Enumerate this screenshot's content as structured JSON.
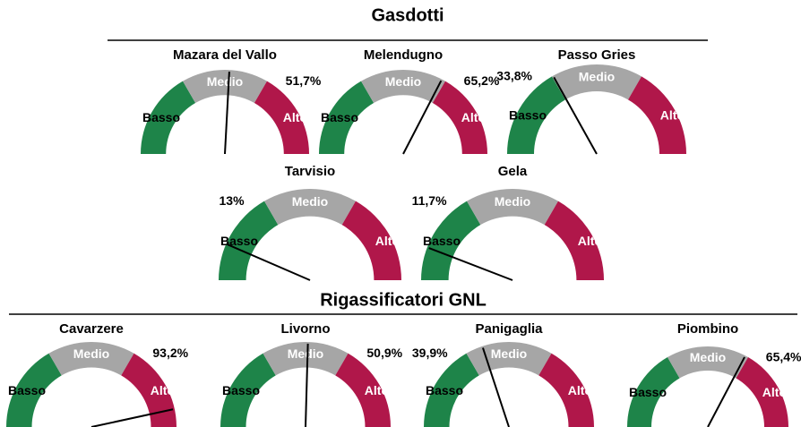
{
  "sections": [
    {
      "title": "Gasdotti"
    },
    {
      "title": "Rigassificatori GNL"
    }
  ],
  "chart_data": [
    {
      "type": "gauge",
      "title": "Mazara del Vallo",
      "values": [
        51.7
      ],
      "value_labels": [
        "51,7%"
      ],
      "bands": [
        "Basso",
        "Medio",
        "Alto"
      ],
      "colors": [
        "#1e8449",
        "#a6a6a6",
        "#b0174a"
      ],
      "ylim": [
        0,
        100
      ]
    },
    {
      "type": "gauge",
      "title": "Melendugno",
      "values": [
        65.2
      ],
      "value_labels": [
        "65,2%"
      ],
      "bands": [
        "Basso",
        "Medio",
        "Alto"
      ],
      "colors": [
        "#1e8449",
        "#a6a6a6",
        "#b0174a"
      ],
      "ylim": [
        0,
        100
      ]
    },
    {
      "type": "gauge",
      "title": "Passo Gries",
      "values": [
        33.8
      ],
      "value_labels": [
        "33,8%"
      ],
      "bands": [
        "Basso",
        "Medio",
        "Alto"
      ],
      "colors": [
        "#1e8449",
        "#a6a6a6",
        "#b0174a"
      ],
      "ylim": [
        0,
        100
      ]
    },
    {
      "type": "gauge",
      "title": "Tarvisio",
      "values": [
        13
      ],
      "value_labels": [
        "13%"
      ],
      "bands": [
        "Basso",
        "Medio",
        "Alto"
      ],
      "colors": [
        "#1e8449",
        "#a6a6a6",
        "#b0174a"
      ],
      "ylim": [
        0,
        100
      ]
    },
    {
      "type": "gauge",
      "title": "Gela",
      "values": [
        11.7
      ],
      "value_labels": [
        "11,7%"
      ],
      "bands": [
        "Basso",
        "Medio",
        "Alto"
      ],
      "colors": [
        "#1e8449",
        "#a6a6a6",
        "#b0174a"
      ],
      "ylim": [
        0,
        100
      ]
    },
    {
      "type": "gauge",
      "title": "Cavarzere",
      "values": [
        93.2
      ],
      "value_labels": [
        "93,2%"
      ],
      "bands": [
        "Basso",
        "Medio",
        "Alto"
      ],
      "colors": [
        "#1e8449",
        "#a6a6a6",
        "#b0174a"
      ],
      "ylim": [
        0,
        100
      ]
    },
    {
      "type": "gauge",
      "title": "Livorno",
      "values": [
        50.9
      ],
      "value_labels": [
        "50,9%"
      ],
      "bands": [
        "Basso",
        "Medio",
        "Alto"
      ],
      "colors": [
        "#1e8449",
        "#a6a6a6",
        "#b0174a"
      ],
      "ylim": [
        0,
        100
      ]
    },
    {
      "type": "gauge",
      "title": "Panigaglia",
      "values": [
        39.9
      ],
      "value_labels": [
        "39,9%"
      ],
      "bands": [
        "Basso",
        "Medio",
        "Alto"
      ],
      "colors": [
        "#1e8449",
        "#a6a6a6",
        "#b0174a"
      ],
      "ylim": [
        0,
        100
      ]
    },
    {
      "type": "gauge",
      "title": "Piombino",
      "values": [
        65.4
      ],
      "value_labels": [
        "65,4%"
      ],
      "bands": [
        "Basso",
        "Medio",
        "Alto"
      ],
      "colors": [
        "#1e8449",
        "#a6a6a6",
        "#b0174a"
      ],
      "ylim": [
        0,
        100
      ]
    }
  ]
}
